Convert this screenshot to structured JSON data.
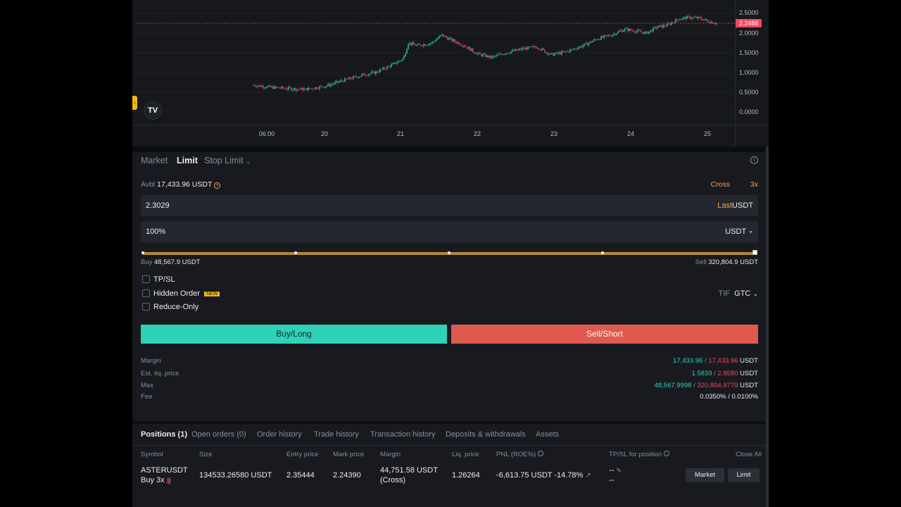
{
  "chart": {
    "y_ticks": [
      "2.5000",
      "2.0000",
      "1.5000",
      "1.0000",
      "0.5000",
      "0.0000"
    ],
    "x_ticks": [
      "06:00",
      "20",
      "21",
      "22",
      "23",
      "24",
      "25"
    ],
    "current_price": "2.2488",
    "logo": "TV",
    "colors": {
      "up": "#2ed3b7",
      "down": "#f6465d",
      "price_line": "#f6465d"
    }
  },
  "order_form": {
    "tabs": {
      "market": "Market",
      "limit": "Limit",
      "stop_limit": "Stop Limit"
    },
    "avbl_label": "Avbl",
    "avbl_value": "17,433.96 USDT",
    "margin_mode": "Cross",
    "leverage": "3x",
    "price_value": "2.3029",
    "price_suffix_last": "Last",
    "price_unit": "USDT",
    "size_value": "100%",
    "size_unit": "USDT",
    "slider_percent": 100,
    "buy_label": "Buy",
    "buy_value": "48,567.9 USDT",
    "sell_label": "Sell",
    "sell_value": "320,804.9 USDT",
    "options": {
      "tpsl": "TP/SL",
      "hidden_order": "Hidden Order",
      "new_badge": "NEW",
      "reduce_only": "Reduce-Only"
    },
    "tif_label": "TIF",
    "tif_value": "GTC",
    "buy_button": "Buy/Long",
    "sell_button": "Sell/Short",
    "summary": {
      "margin_label": "Margin",
      "margin_buy": "17,433.96",
      "margin_sell": "17,433.96",
      "liq_label": "Est. liq. price",
      "liq_buy": "1.5839",
      "liq_sell": "2.8580",
      "max_label": "Max",
      "max_buy": "48,567.9998",
      "max_sell": "320,804.9779",
      "fee_label": "Fee",
      "fee_value": "0.0350% / 0.0100%",
      "unit": "USDT",
      "separator": "/"
    }
  },
  "positions": {
    "tabs": [
      "Positions (1)",
      "Open orders (0)",
      "Order history",
      "Trade history",
      "Transaction history",
      "Deposits & withdrawals",
      "Assets"
    ],
    "columns": {
      "symbol": "Symbol",
      "size": "Size",
      "entry": "Entry price",
      "mark": "Mark price",
      "margin": "Margin",
      "liq": "Liq. price",
      "pnl": "PNL (ROE%)",
      "tpsl": "TP/SL for position",
      "close_all": "Close All"
    },
    "row": {
      "symbol": "ASTERUSDT",
      "side": "Buy 3x",
      "size": "134533.26580 USDT",
      "entry": "2.35444",
      "mark": "2.24390",
      "margin": "44,751.58 USDT",
      "margin_mode": "(Cross)",
      "liq": "1.26264",
      "pnl": "-6,613.75 USDT",
      "roe": "-14.78%",
      "tp": "--",
      "sl": "--",
      "market_btn": "Market",
      "limit_btn": "Limit"
    }
  }
}
